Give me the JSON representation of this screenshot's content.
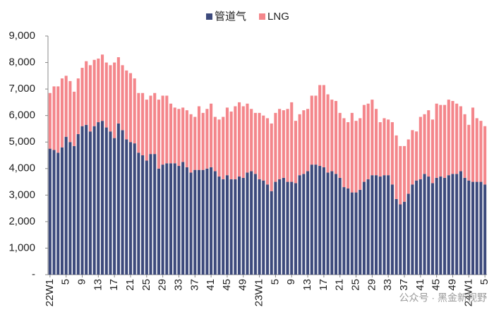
{
  "chart_data": {
    "type": "stacked_bar",
    "categories": [
      "22W1",
      null,
      null,
      null,
      "5",
      null,
      null,
      null,
      "9",
      null,
      null,
      null,
      "13",
      null,
      null,
      null,
      "17",
      null,
      null,
      null,
      "21",
      null,
      null,
      null,
      "25",
      null,
      null,
      null,
      "29",
      null,
      null,
      null,
      "33",
      null,
      null,
      null,
      "37",
      null,
      null,
      null,
      "41",
      null,
      null,
      null,
      "45",
      null,
      null,
      null,
      "49",
      null,
      null,
      null,
      "23W1",
      null,
      null,
      null,
      "5",
      null,
      null,
      null,
      "9",
      null,
      null,
      null,
      "13",
      null,
      null,
      null,
      "17",
      null,
      null,
      null,
      "21",
      null,
      null,
      null,
      "25",
      null,
      null,
      null,
      "29",
      null,
      null,
      null,
      "33",
      null,
      null,
      null,
      "37",
      null,
      null,
      null,
      "41",
      null,
      null,
      null,
      "45",
      null,
      null,
      null,
      "49",
      null,
      null,
      null,
      "24W1",
      null,
      null,
      null,
      "5"
    ],
    "series": [
      {
        "name": "管道气",
        "color": "#3d4a7c",
        "values": [
          4750,
          4700,
          4600,
          4800,
          5200,
          5000,
          4850,
          5300,
          5600,
          5650,
          5400,
          5600,
          5750,
          5800,
          5550,
          5400,
          5150,
          5700,
          5450,
          5100,
          5000,
          4950,
          4600,
          4500,
          4300,
          4550,
          4550,
          4000,
          4150,
          4200,
          4200,
          4200,
          4100,
          4250,
          4050,
          3850,
          3950,
          3950,
          3950,
          4000,
          4050,
          3900,
          3700,
          3600,
          3750,
          3600,
          3600,
          3700,
          3650,
          3850,
          3900,
          3800,
          3600,
          3550,
          3400,
          3150,
          3500,
          3600,
          3650,
          3500,
          3500,
          3450,
          3750,
          3800,
          3900,
          4150,
          4150,
          4100,
          4050,
          3850,
          3900,
          3800,
          3650,
          3300,
          3250,
          3100,
          3100,
          3200,
          3500,
          3600,
          3750,
          3750,
          3700,
          3750,
          3750,
          3400,
          2850,
          2650,
          2750,
          3050,
          3400,
          3550,
          3600,
          3800,
          3700,
          3450,
          3650,
          3700,
          3650,
          3750,
          3800,
          3800,
          3900,
          3650,
          3550,
          3500,
          3500,
          3500,
          3400
        ]
      },
      {
        "name": "LNG",
        "color": "#f4868b",
        "values": [
          2100,
          2400,
          2500,
          2600,
          2300,
          2300,
          2050,
          2100,
          2200,
          2400,
          2500,
          2500,
          2400,
          2500,
          2450,
          2500,
          2850,
          2500,
          2450,
          2600,
          2600,
          2450,
          2250,
          2350,
          2300,
          2200,
          2300,
          2600,
          2600,
          2550,
          2250,
          2100,
          2150,
          2050,
          2150,
          2200,
          2000,
          2400,
          2150,
          2250,
          2400,
          2050,
          2150,
          2350,
          2550,
          2550,
          2750,
          2800,
          2700,
          2600,
          2350,
          2300,
          2500,
          2450,
          2500,
          2550,
          2600,
          2650,
          2550,
          2750,
          3000,
          2350,
          2300,
          2400,
          2350,
          2600,
          2600,
          3050,
          3100,
          2950,
          2700,
          2750,
          2450,
          2600,
          2500,
          3000,
          2700,
          2700,
          2900,
          2850,
          2850,
          2500,
          2050,
          2150,
          2100,
          2350,
          2400,
          2200,
          2100,
          2050,
          2050,
          1850,
          2350,
          2250,
          2500,
          2400,
          2800,
          2700,
          2750,
          2850,
          2750,
          2650,
          2450,
          2400,
          2100,
          2800,
          2400,
          2300,
          2200
        ]
      }
    ],
    "ylim": [
      0,
      9000
    ],
    "yticks": [
      {
        "value": 0,
        "label": "-"
      },
      {
        "value": 1000,
        "label": "1,000"
      },
      {
        "value": 2000,
        "label": "2,000"
      },
      {
        "value": 3000,
        "label": "3,000"
      },
      {
        "value": 4000,
        "label": "4,000"
      },
      {
        "value": 5000,
        "label": "5,000"
      },
      {
        "value": 6000,
        "label": "6,000"
      },
      {
        "value": 7000,
        "label": "7,000"
      },
      {
        "value": 8000,
        "label": "8,000"
      },
      {
        "value": 9000,
        "label": "9,000"
      }
    ],
    "grid": false,
    "legend": "top",
    "annotations": [
      "公众号 · 黑金新视野"
    ]
  }
}
